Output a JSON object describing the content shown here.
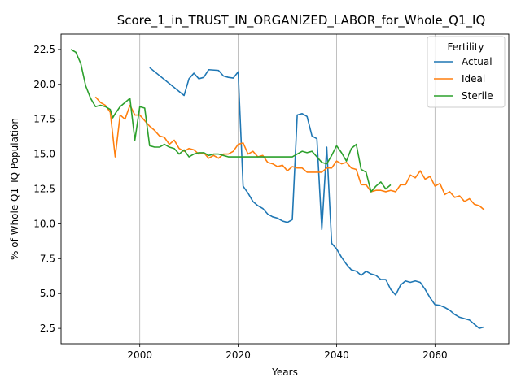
{
  "chart_data": {
    "type": "line",
    "title": "Score_1_in_TRUST_IN_ORGANIZED_LABOR_for_Whole_Q1_IQ",
    "xlabel": "Years",
    "ylabel": "% of Whole Q1_IQ Population",
    "xlim": [
      1984,
      2075
    ],
    "ylim": [
      1.4,
      23.6
    ],
    "xticks": [
      2000,
      2020,
      2040,
      2060
    ],
    "yticks": [
      2.5,
      5.0,
      7.5,
      10.0,
      12.5,
      15.0,
      17.5,
      20.0,
      22.5
    ],
    "grid": "vertical",
    "legend": {
      "title": "Fertility",
      "placement": "top-right"
    },
    "series": [
      {
        "name": "Actual",
        "color": "#1f77b4",
        "points": [
          [
            2002,
            21.2
          ],
          [
            2009,
            19.2
          ],
          [
            2010,
            20.4
          ],
          [
            2011,
            20.8
          ],
          [
            2012,
            20.4
          ],
          [
            2013,
            20.5
          ],
          [
            2014,
            21.05
          ],
          [
            2016,
            21.0
          ],
          [
            2017,
            20.6
          ],
          [
            2018,
            20.5
          ],
          [
            2019,
            20.45
          ],
          [
            2020,
            20.9
          ],
          [
            2021,
            12.7
          ],
          [
            2022,
            12.2
          ],
          [
            2023,
            11.6
          ],
          [
            2024,
            11.3
          ],
          [
            2025,
            11.1
          ],
          [
            2026,
            10.7
          ],
          [
            2027,
            10.5
          ],
          [
            2028,
            10.4
          ],
          [
            2029,
            10.2
          ],
          [
            2030,
            10.1
          ],
          [
            2031,
            10.3
          ],
          [
            2032,
            17.8
          ],
          [
            2033,
            17.9
          ],
          [
            2034,
            17.7
          ],
          [
            2035,
            16.3
          ],
          [
            2036,
            16.1
          ],
          [
            2037,
            9.6
          ],
          [
            2038,
            15.5
          ],
          [
            2039,
            8.6
          ],
          [
            2040,
            8.2
          ],
          [
            2041,
            7.6
          ],
          [
            2042,
            7.1
          ],
          [
            2043,
            6.7
          ],
          [
            2044,
            6.6
          ],
          [
            2045,
            6.3
          ],
          [
            2046,
            6.6
          ],
          [
            2047,
            6.4
          ],
          [
            2048,
            6.3
          ],
          [
            2049,
            6.0
          ],
          [
            2050,
            6.0
          ],
          [
            2051,
            5.3
          ],
          [
            2052,
            4.9
          ],
          [
            2053,
            5.6
          ],
          [
            2054,
            5.9
          ],
          [
            2055,
            5.8
          ],
          [
            2056,
            5.9
          ],
          [
            2057,
            5.8
          ],
          [
            2058,
            5.3
          ],
          [
            2059,
            4.7
          ],
          [
            2060,
            4.2
          ],
          [
            2061,
            4.15
          ],
          [
            2062,
            4.0
          ],
          [
            2063,
            3.8
          ],
          [
            2064,
            3.5
          ],
          [
            2065,
            3.3
          ],
          [
            2066,
            3.2
          ],
          [
            2067,
            3.1
          ],
          [
            2068,
            2.8
          ],
          [
            2069,
            2.5
          ],
          [
            2070,
            2.6
          ]
        ]
      },
      {
        "name": "Ideal",
        "color": "#ff7f0e",
        "points": [
          [
            1991,
            19.1
          ],
          [
            1992,
            18.7
          ],
          [
            1993,
            18.5
          ],
          [
            1994,
            18.0
          ],
          [
            1995,
            14.8
          ],
          [
            1996,
            17.8
          ],
          [
            1997,
            17.5
          ],
          [
            1998,
            18.5
          ],
          [
            1999,
            17.8
          ],
          [
            2000,
            17.8
          ],
          [
            2001,
            17.4
          ],
          [
            2002,
            17.0
          ],
          [
            2003,
            16.7
          ],
          [
            2004,
            16.3
          ],
          [
            2005,
            16.2
          ],
          [
            2006,
            15.7
          ],
          [
            2007,
            16.0
          ],
          [
            2008,
            15.4
          ],
          [
            2009,
            15.2
          ],
          [
            2010,
            15.4
          ],
          [
            2011,
            15.3
          ],
          [
            2012,
            15.0
          ],
          [
            2013,
            15.1
          ],
          [
            2014,
            14.7
          ],
          [
            2015,
            14.9
          ],
          [
            2016,
            14.7
          ],
          [
            2017,
            15.0
          ],
          [
            2018,
            15.0
          ],
          [
            2019,
            15.2
          ],
          [
            2020,
            15.7
          ],
          [
            2021,
            15.8
          ],
          [
            2022,
            15.0
          ],
          [
            2023,
            15.2
          ],
          [
            2024,
            14.8
          ],
          [
            2025,
            14.9
          ],
          [
            2026,
            14.4
          ],
          [
            2027,
            14.3
          ],
          [
            2028,
            14.1
          ],
          [
            2029,
            14.2
          ],
          [
            2030,
            13.8
          ],
          [
            2031,
            14.1
          ],
          [
            2032,
            14.0
          ],
          [
            2033,
            14.0
          ],
          [
            2034,
            13.7
          ],
          [
            2035,
            13.7
          ],
          [
            2036,
            13.7
          ],
          [
            2037,
            13.7
          ],
          [
            2038,
            14.0
          ],
          [
            2039,
            14.0
          ],
          [
            2040,
            14.5
          ],
          [
            2041,
            14.3
          ],
          [
            2042,
            14.4
          ],
          [
            2043,
            14.0
          ],
          [
            2044,
            13.9
          ],
          [
            2045,
            12.8
          ],
          [
            2046,
            12.8
          ],
          [
            2047,
            12.3
          ],
          [
            2048,
            12.4
          ],
          [
            2049,
            12.4
          ],
          [
            2050,
            12.3
          ],
          [
            2051,
            12.4
          ],
          [
            2052,
            12.3
          ],
          [
            2053,
            12.8
          ],
          [
            2054,
            12.8
          ],
          [
            2055,
            13.5
          ],
          [
            2056,
            13.3
          ],
          [
            2057,
            13.8
          ],
          [
            2058,
            13.2
          ],
          [
            2059,
            13.4
          ],
          [
            2060,
            12.7
          ],
          [
            2061,
            12.9
          ],
          [
            2062,
            12.1
          ],
          [
            2063,
            12.3
          ],
          [
            2064,
            11.9
          ],
          [
            2065,
            12.0
          ],
          [
            2066,
            11.6
          ],
          [
            2067,
            11.8
          ],
          [
            2068,
            11.4
          ],
          [
            2069,
            11.3
          ],
          [
            2070,
            11.0
          ]
        ]
      },
      {
        "name": "Sterile",
        "color": "#2ca02c",
        "points": [
          [
            1986,
            22.5
          ],
          [
            1987,
            22.3
          ],
          [
            1988,
            21.5
          ],
          [
            1989,
            19.9
          ],
          [
            1990,
            19.0
          ],
          [
            1991,
            18.4
          ],
          [
            1992,
            18.5
          ],
          [
            1993,
            18.4
          ],
          [
            1994,
            18.2
          ],
          [
            1994.5,
            17.6
          ],
          [
            1995,
            17.9
          ],
          [
            1996,
            18.4
          ],
          [
            1997,
            18.7
          ],
          [
            1998,
            19.0
          ],
          [
            1999,
            16.0
          ],
          [
            2000,
            18.4
          ],
          [
            2001,
            18.3
          ],
          [
            2002,
            15.6
          ],
          [
            2003,
            15.5
          ],
          [
            2004,
            15.5
          ],
          [
            2005,
            15.7
          ],
          [
            2006,
            15.5
          ],
          [
            2007,
            15.4
          ],
          [
            2008,
            15.0
          ],
          [
            2009,
            15.3
          ],
          [
            2010,
            14.8
          ],
          [
            2011,
            15.0
          ],
          [
            2012,
            15.1
          ],
          [
            2013,
            15.1
          ],
          [
            2014,
            14.9
          ],
          [
            2015,
            15.0
          ],
          [
            2016,
            15.0
          ],
          [
            2017,
            14.9
          ],
          [
            2018,
            14.8
          ],
          [
            2019,
            14.8
          ],
          [
            2020,
            14.8
          ],
          [
            2025,
            14.8
          ],
          [
            2030,
            14.8
          ],
          [
            2031,
            14.8
          ],
          [
            2032,
            15.0
          ],
          [
            2033,
            15.2
          ],
          [
            2034,
            15.1
          ],
          [
            2035,
            15.2
          ],
          [
            2036,
            14.8
          ],
          [
            2037,
            14.4
          ],
          [
            2038,
            14.3
          ],
          [
            2039,
            14.9
          ],
          [
            2040,
            15.6
          ],
          [
            2041,
            15.1
          ],
          [
            2042,
            14.5
          ],
          [
            2043,
            15.4
          ],
          [
            2044,
            15.7
          ],
          [
            2045,
            13.9
          ],
          [
            2046,
            13.7
          ],
          [
            2047,
            12.3
          ],
          [
            2048,
            12.7
          ],
          [
            2049,
            13.0
          ],
          [
            2050,
            12.5
          ],
          [
            2051,
            12.8
          ]
        ]
      }
    ]
  }
}
